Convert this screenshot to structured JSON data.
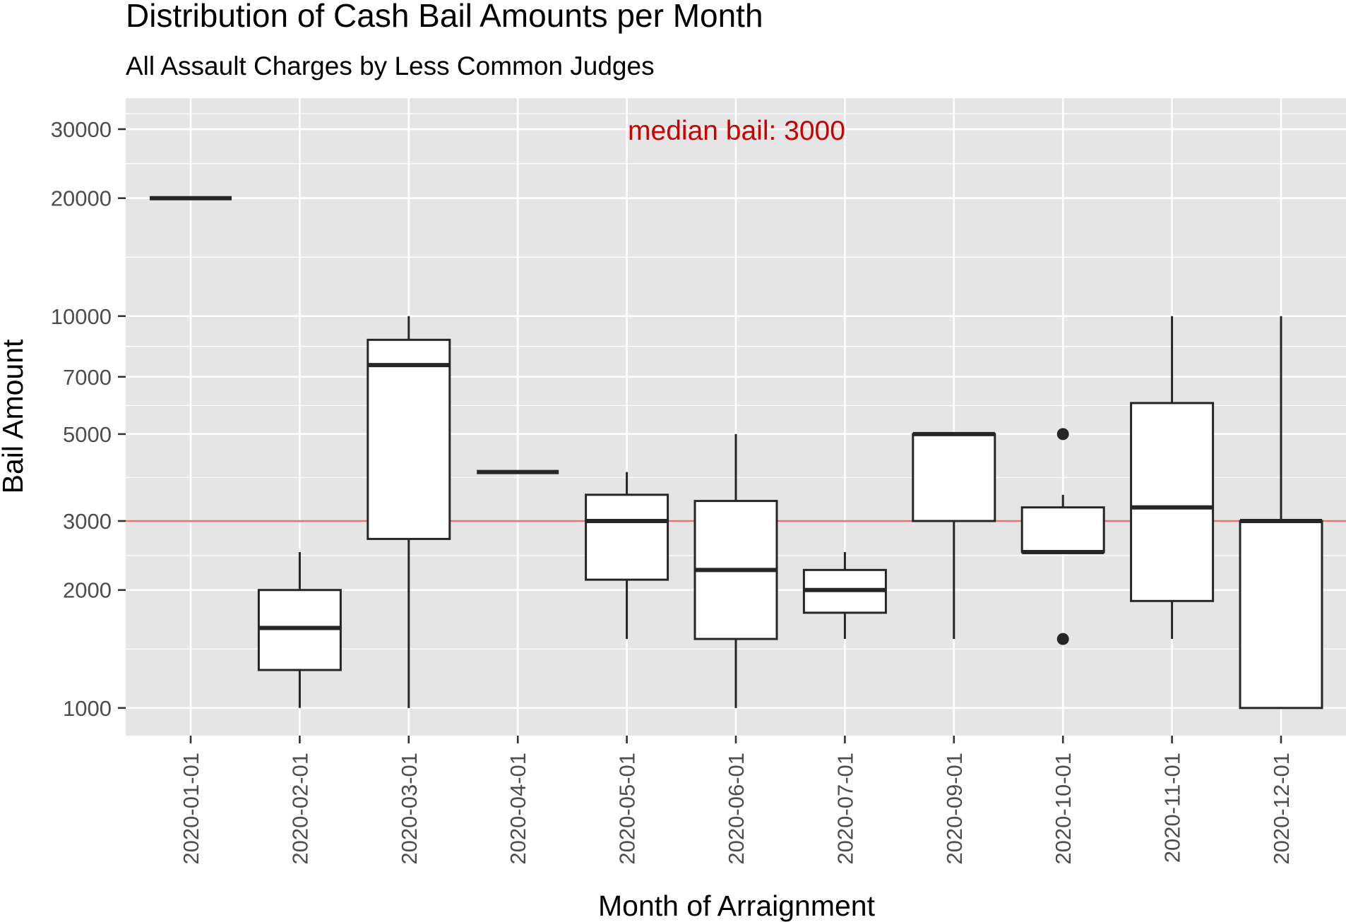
{
  "chart_data": {
    "type": "boxplot",
    "title": "Distribution of Cash Bail Amounts per Month",
    "subtitle": "All Assault Charges by Less Common Judges",
    "xlabel": "Month of Arraignment",
    "ylabel": "Bail Amount",
    "y_scale": "log10",
    "ylim": [
      850,
      36000
    ],
    "y_ticks": [
      1000,
      2000,
      3000,
      5000,
      7000,
      10000,
      20000,
      30000
    ],
    "y_tick_labels": [
      "1000",
      "2000",
      "3000",
      "5000",
      "7000",
      "10000",
      "20000",
      "30000"
    ],
    "grid": true,
    "categories": [
      "2020-01-01",
      "2020-02-01",
      "2020-03-01",
      "2020-04-01",
      "2020-05-01",
      "2020-06-01",
      "2020-07-01",
      "2020-09-01",
      "2020-10-01",
      "2020-11-01",
      "2020-12-01"
    ],
    "boxes": [
      {
        "category": "2020-01-01",
        "whisker_low": 20000,
        "q1": 20000,
        "median": 20000,
        "q3": 20000,
        "whisker_high": 20000,
        "outliers": []
      },
      {
        "category": "2020-02-01",
        "whisker_low": 1000,
        "q1": 1250,
        "median": 1600,
        "q3": 2000,
        "whisker_high": 2500,
        "outliers": []
      },
      {
        "category": "2020-03-01",
        "whisker_low": 1000,
        "q1": 2700,
        "median": 7500,
        "q3": 8700,
        "whisker_high": 10000,
        "outliers": []
      },
      {
        "category": "2020-04-01",
        "whisker_low": 4000,
        "q1": 4000,
        "median": 4000,
        "q3": 4000,
        "whisker_high": 4000,
        "outliers": []
      },
      {
        "category": "2020-05-01",
        "whisker_low": 1500,
        "q1": 2125,
        "median": 3000,
        "q3": 3500,
        "whisker_high": 4000,
        "outliers": []
      },
      {
        "category": "2020-06-01",
        "whisker_low": 1000,
        "q1": 1500,
        "median": 2250,
        "q3": 3375,
        "whisker_high": 5000,
        "outliers": []
      },
      {
        "category": "2020-07-01",
        "whisker_low": 1500,
        "q1": 1750,
        "median": 2000,
        "q3": 2250,
        "whisker_high": 2500,
        "outliers": []
      },
      {
        "category": "2020-09-01",
        "whisker_low": 1500,
        "q1": 3000,
        "median": 5000,
        "q3": 5000,
        "whisker_high": 5000,
        "outliers": []
      },
      {
        "category": "2020-10-01",
        "whisker_low": 2500,
        "q1": 2500,
        "median": 2500,
        "q3": 3250,
        "whisker_high": 3500,
        "outliers": [
          5000,
          1500
        ]
      },
      {
        "category": "2020-11-01",
        "whisker_low": 1500,
        "q1": 1875,
        "median": 3250,
        "q3": 6000,
        "whisker_high": 10000,
        "outliers": []
      },
      {
        "category": "2020-12-01",
        "whisker_low": 1000,
        "q1": 1000,
        "median": 3000,
        "q3": 3000,
        "whisker_high": 10000,
        "outliers": []
      }
    ],
    "reference_line": {
      "value": 3000,
      "color": "#e06666",
      "label": "median bail: 3000",
      "label_color": "#cc0000"
    },
    "colors": {
      "panel_background": "#e5e5e5",
      "grid_line": "#ffffff",
      "box_fill": "#ffffff",
      "box_stroke": "#262626",
      "tick_text": "#4d4d4d",
      "title_text": "#000000"
    }
  }
}
